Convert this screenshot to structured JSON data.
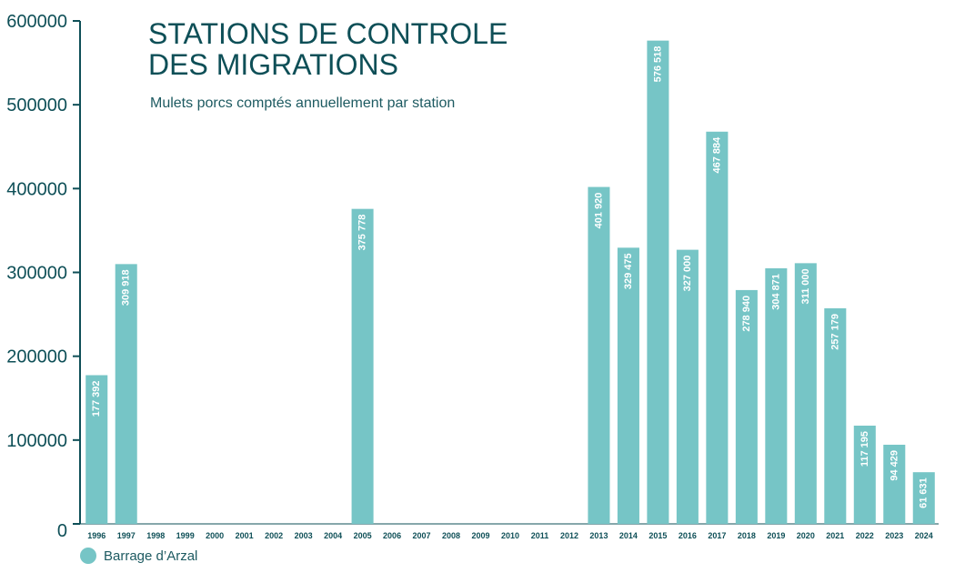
{
  "chart_data": {
    "type": "bar",
    "title_line1": "STATIONS DE CONTROLE",
    "title_line2": "DES MIGRATIONS",
    "subtitle": "Mulets porcs comptés annuellement par station",
    "xlabel": "",
    "ylabel": "",
    "ylim": [
      0,
      600000
    ],
    "yticks": [
      0,
      100000,
      200000,
      300000,
      400000,
      500000,
      600000
    ],
    "ytick_labels": [
      "0",
      "100000",
      "200000",
      "300000",
      "400000",
      "500000",
      "600000"
    ],
    "categories": [
      "1996",
      "1997",
      "1998",
      "1999",
      "2000",
      "2001",
      "2002",
      "2003",
      "2004",
      "2005",
      "2006",
      "2007",
      "2008",
      "2009",
      "2010",
      "2011",
      "2012",
      "2013",
      "2014",
      "2015",
      "2016",
      "2017",
      "2018",
      "2019",
      "2020",
      "2021",
      "2022",
      "2023",
      "2024"
    ],
    "series": [
      {
        "name": "Barrage d’Arzal",
        "color": "#76c5c6",
        "values": [
          177392,
          309918,
          null,
          null,
          null,
          null,
          null,
          null,
          null,
          375778,
          null,
          null,
          null,
          null,
          null,
          null,
          null,
          401920,
          329475,
          576518,
          327000,
          467884,
          278940,
          304871,
          311000,
          257179,
          117195,
          94429,
          61631
        ],
        "value_labels": [
          "177 392",
          "309 918",
          "",
          "",
          "",
          "",
          "",
          "",
          "",
          "375 778",
          "",
          "",
          "",
          "",
          "",
          "",
          "",
          "401 920",
          "329 475",
          "576 518",
          "327 000",
          "467 884",
          "278 940",
          "304 871",
          "311 000",
          "257 179",
          "117 195",
          "94 429",
          "61 631"
        ]
      }
    ],
    "grid": false,
    "legend_position": "bottom-left",
    "colors": {
      "bar": "#76c5c6",
      "axis": "#0e4f57",
      "text": "#0e4f57",
      "bar_label": "#ffffff"
    }
  }
}
